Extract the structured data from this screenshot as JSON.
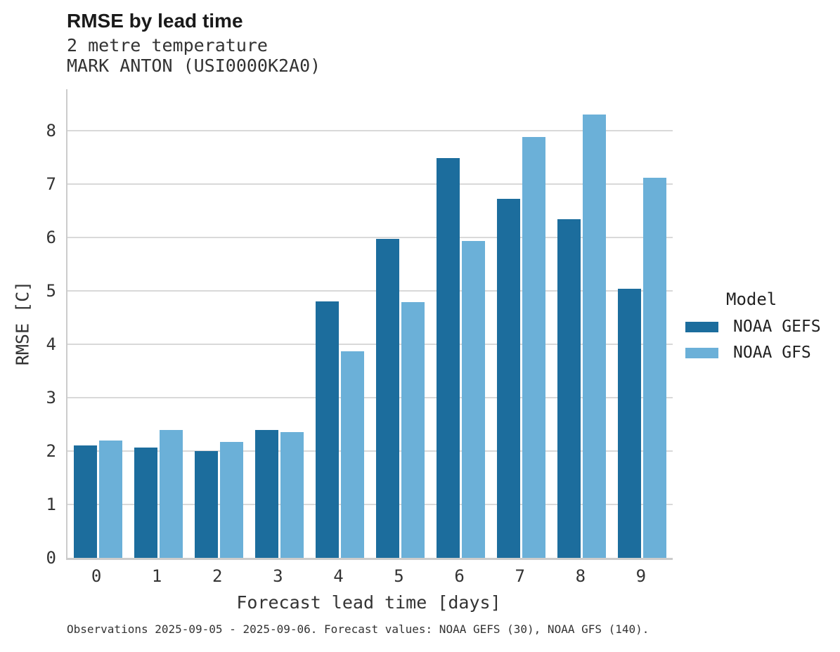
{
  "chart_data": {
    "type": "bar",
    "title": "RMSE by lead time",
    "subtitle_line1": "2 metre temperature",
    "subtitle_line2": "MARK ANTON (USI0000K2A0)",
    "xlabel": "Forecast lead time [days]",
    "ylabel": "RMSE [C]",
    "categories": [
      "0",
      "1",
      "2",
      "3",
      "4",
      "5",
      "6",
      "7",
      "8",
      "9"
    ],
    "series": [
      {
        "name": "NOAA GEFS",
        "color": "#1c6d9d",
        "values": [
          2.11,
          2.06,
          2.0,
          2.39,
          4.8,
          5.97,
          7.48,
          6.72,
          6.34,
          5.04
        ]
      },
      {
        "name": "NOAA GFS",
        "color": "#6bb0d8",
        "values": [
          2.19,
          2.39,
          2.17,
          2.36,
          3.86,
          4.79,
          5.93,
          7.87,
          8.3,
          7.12
        ]
      }
    ],
    "yticks": [
      0,
      1,
      2,
      3,
      4,
      5,
      6,
      7,
      8
    ],
    "ylim": [
      0,
      8.77
    ],
    "grid": true,
    "legend_title": "Model",
    "legend_position": "right",
    "caption": "Observations 2025-09-05 - 2025-09-06. Forecast values: NOAA GEFS (30), NOAA GFS (140).",
    "colors": {
      "gridline": "#d9d9d9",
      "axis_spine": "#cccccc",
      "text": "#333333"
    }
  }
}
